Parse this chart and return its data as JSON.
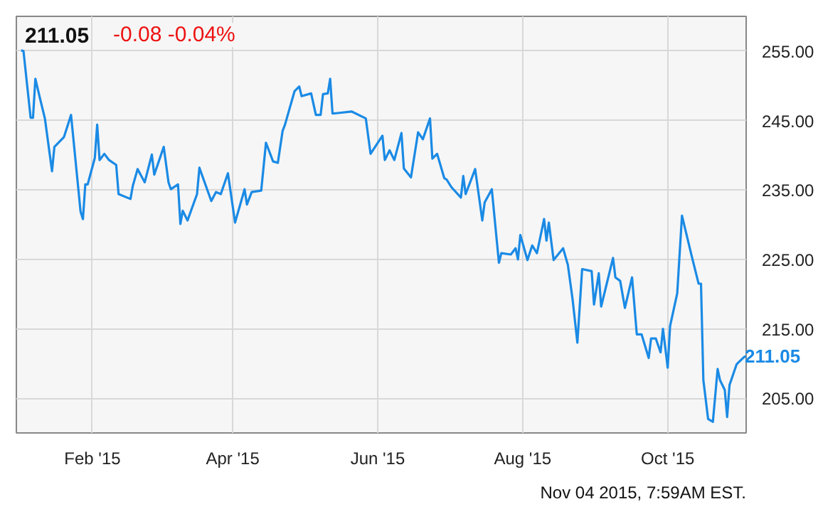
{
  "chart_data": {
    "type": "line",
    "title": "211.05",
    "subtitle": "-0.08  -0.04%",
    "x": [
      "2015-01-02",
      "2015-01-03",
      "2015-01-06",
      "2015-01-07",
      "2015-01-08",
      "2015-01-10",
      "2015-01-12",
      "2015-01-15",
      "2015-01-16",
      "2015-01-20",
      "2015-01-23",
      "2015-01-27",
      "2015-01-28",
      "2015-01-29",
      "2015-01-30",
      "2015-02-02",
      "2015-02-03",
      "2015-02-04",
      "2015-02-06",
      "2015-02-08",
      "2015-02-11",
      "2015-02-12",
      "2015-02-17",
      "2015-02-18",
      "2015-02-20",
      "2015-02-23",
      "2015-02-26",
      "2015-02-27",
      "2015-03-03",
      "2015-03-05",
      "2015-03-06",
      "2015-03-09",
      "2015-03-10",
      "2015-03-11",
      "2015-03-13",
      "2015-03-17",
      "2015-03-18",
      "2015-03-23",
      "2015-03-25",
      "2015-03-27",
      "2015-03-30",
      "2015-04-02",
      "2015-04-06",
      "2015-04-07",
      "2015-04-09",
      "2015-04-13",
      "2015-04-15",
      "2015-04-18",
      "2015-04-20",
      "2015-04-22",
      "2015-04-23",
      "2015-04-27",
      "2015-04-29",
      "2015-04-30",
      "2015-05-04",
      "2015-05-06",
      "2015-05-08",
      "2015-05-09",
      "2015-05-11",
      "2015-05-12",
      "2015-05-13",
      "2015-05-16",
      "2015-05-21",
      "2015-05-27",
      "2015-05-29",
      "2015-06-03",
      "2015-06-04",
      "2015-06-06",
      "2015-06-08",
      "2015-06-11",
      "2015-06-12",
      "2015-06-15",
      "2015-06-18",
      "2015-06-20",
      "2015-06-23",
      "2015-06-24",
      "2015-06-26",
      "2015-06-29",
      "2015-06-30",
      "2015-07-02",
      "2015-07-06",
      "2015-07-07",
      "2015-07-08",
      "2015-07-12",
      "2015-07-15",
      "2015-07-16",
      "2015-07-19",
      "2015-07-22",
      "2015-07-23",
      "2015-07-27",
      "2015-07-29",
      "2015-07-30",
      "2015-07-31",
      "2015-08-03",
      "2015-08-05",
      "2015-08-07",
      "2015-08-10",
      "2015-08-11",
      "2015-08-12",
      "2015-08-14",
      "2015-08-18",
      "2015-08-20",
      "2015-08-22",
      "2015-08-24",
      "2015-08-26",
      "2015-08-30",
      "2015-08-31",
      "2015-09-02",
      "2015-09-03",
      "2015-09-08",
      "2015-09-09",
      "2015-09-11",
      "2015-09-13",
      "2015-09-16",
      "2015-09-18",
      "2015-09-20",
      "2015-09-23",
      "2015-09-24",
      "2015-09-26",
      "2015-09-28",
      "2015-09-29",
      "2015-10-01",
      "2015-10-02",
      "2015-10-05",
      "2015-10-07",
      "2015-10-11",
      "2015-10-14",
      "2015-10-15",
      "2015-10-16",
      "2015-10-18",
      "2015-10-20",
      "2015-10-22",
      "2015-10-23",
      "2015-10-25",
      "2015-10-26",
      "2015-10-27",
      "2015-10-30",
      "2015-11-02",
      "2015-11-03"
    ],
    "series": [
      {
        "color": "#1a8ae5",
        "value_labels": [
          null,
          null,
          null,
          null,
          null,
          null,
          null,
          null,
          null,
          null,
          null,
          null,
          null,
          null,
          null,
          null,
          null,
          null,
          null,
          null,
          null,
          null,
          null,
          null,
          null,
          null,
          null,
          null,
          null,
          null,
          null,
          null,
          null,
          null,
          null,
          null,
          null,
          null,
          null,
          null,
          null,
          null,
          null,
          null,
          null,
          null,
          null,
          null,
          null,
          null,
          null,
          null,
          null,
          null,
          null,
          null,
          null,
          null,
          null,
          null,
          null,
          null,
          null,
          null,
          null,
          null,
          null,
          null,
          null,
          null,
          null,
          null,
          null,
          null,
          null,
          null,
          null,
          null,
          null,
          null,
          null,
          null,
          null,
          null,
          null,
          null,
          null,
          null,
          null,
          null,
          null,
          null,
          null,
          null,
          null,
          null,
          null,
          null,
          null,
          null,
          null,
          null,
          null,
          null,
          null,
          null,
          null,
          null,
          null,
          null,
          null,
          null,
          null,
          null,
          null,
          null,
          null,
          null,
          null,
          null,
          null,
          null,
          null,
          null,
          null,
          null,
          null,
          null,
          null,
          null,
          null,
          null,
          null,
          null,
          null,
          null,
          null,
          null,
          "211.05"
        ],
        "values": [
          255.1,
          255.0,
          245.4,
          245.4,
          251.0,
          248.1,
          245.3,
          237.7,
          241.2,
          242.6,
          245.8,
          231.9,
          230.8,
          235.8,
          235.8,
          239.6,
          244.4,
          239.3,
          240.2,
          239.3,
          238.6,
          234.4,
          233.7,
          235.6,
          238.0,
          236.1,
          240.1,
          237.2,
          241.2,
          236.1,
          235.1,
          235.8,
          230.1,
          232.0,
          230.6,
          234.4,
          238.2,
          233.4,
          234.7,
          234.4,
          237.4,
          230.3,
          235.1,
          232.9,
          234.7,
          234.9,
          241.8,
          239.1,
          238.9,
          243.5,
          244.4,
          249.2,
          249.9,
          248.5,
          248.9,
          245.8,
          245.8,
          248.8,
          248.9,
          251.0,
          246.0,
          246.1,
          246.3,
          245.3,
          240.2,
          242.8,
          239.3,
          240.7,
          239.3,
          243.2,
          238.1,
          236.8,
          243.3,
          242.3,
          245.3,
          239.5,
          240.2,
          236.7,
          236.5,
          235.4,
          233.9,
          237.0,
          234.4,
          238.0,
          230.6,
          233.2,
          235.1,
          224.5,
          225.9,
          225.7,
          226.6,
          225.0,
          228.5,
          224.9,
          227.0,
          225.9,
          230.8,
          227.7,
          230.3,
          224.9,
          226.6,
          224.2,
          219.2,
          213.0,
          223.6,
          223.3,
          218.5,
          223.0,
          218.2,
          225.2,
          222.4,
          221.9,
          218.0,
          222.4,
          214.2,
          214.2,
          210.8,
          213.6,
          213.6,
          211.6,
          215.0,
          209.4,
          215.4,
          220.1,
          231.3,
          225.6,
          221.5,
          221.5,
          207.6,
          202.0,
          201.6,
          209.2,
          207.6,
          206.2,
          202.3,
          206.9,
          209.9,
          210.9,
          211.05
        ]
      }
    ],
    "xlim": [
      "2014-12-31",
      "2015-11-03"
    ],
    "xticks": [
      {
        "value": "2015-02-01",
        "label": "Feb '15"
      },
      {
        "value": "2015-04-01",
        "label": "Apr '15"
      },
      {
        "value": "2015-06-01",
        "label": "Jun '15"
      },
      {
        "value": "2015-08-01",
        "label": "Aug '15"
      },
      {
        "value": "2015-10-01",
        "label": "Oct '15"
      }
    ],
    "ylim": [
      200,
      260
    ],
    "yticks": [
      {
        "value": 205,
        "label": "205.00"
      },
      {
        "value": 215,
        "label": "215.00"
      },
      {
        "value": 225,
        "label": "225.00"
      },
      {
        "value": 235,
        "label": "235.00"
      },
      {
        "value": 245,
        "label": "245.00"
      },
      {
        "value": 255,
        "label": "255.00"
      }
    ],
    "grid": true,
    "line_style": "solid",
    "marker": "none",
    "annotations": [
      "Nov 04 2015, 7:59AM EST."
    ]
  }
}
